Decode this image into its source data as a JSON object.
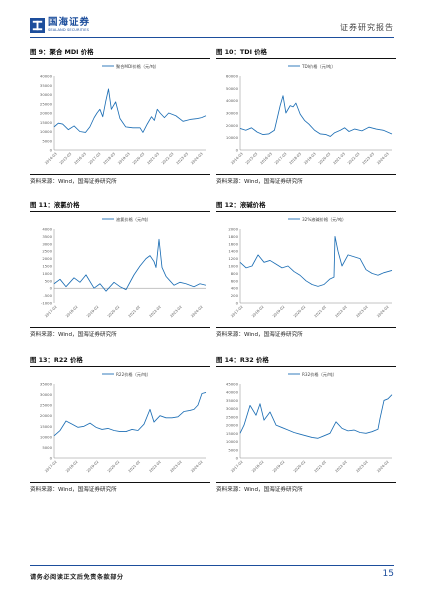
{
  "header": {
    "logo_cn": "国海证券",
    "logo_en": "SEALAND SECURITIES",
    "report_type": "证券研究报告"
  },
  "footer": {
    "disclaimer": "请务必阅读正文后免责条款部分",
    "page_number": "15"
  },
  "colors": {
    "brand": "#1d4e9c",
    "series": "#1e6fb5",
    "axis": "#888888"
  },
  "figures": [
    {
      "title": "图 9：聚合 MDI 价格",
      "source": "资料来源：Wind，国海证券研究所"
    },
    {
      "title": "图 10：TDI 价格",
      "source": "资料来源：Wind，国海证券研究所"
    },
    {
      "title": "图 11：液氯价格",
      "source": "资料来源：Wind，国海证券研究所"
    },
    {
      "title": "图 12：液碱价格",
      "source": "资料来源：Wind，国海证券研究所"
    },
    {
      "title": "图 13：R22 价格",
      "source": "资料来源：Wind，国海证券研究所"
    },
    {
      "title": "图 14：R32 价格",
      "source": "资料来源：Wind，国海证券研究所"
    }
  ],
  "chart_data": [
    {
      "type": "line",
      "legend": "聚合MDI价格（元/吨）",
      "legend_position": "top-center",
      "grid": false,
      "ylim": [
        0,
        40000
      ],
      "yticks": [
        0,
        5000,
        10000,
        15000,
        20000,
        25000,
        30000,
        35000,
        40000
      ],
      "xlim": [
        2014.0,
        2024.6
      ],
      "xticks": [
        "2014-03",
        "2015-03",
        "2016-03",
        "2017-03",
        "2018-03",
        "2019-03",
        "2020-03",
        "2021-03",
        "2022-03",
        "2023-03",
        "2024-03"
      ],
      "series": [
        {
          "x": [
            2014.0,
            2014.3,
            2014.6,
            2015.0,
            2015.4,
            2015.8,
            2016.2,
            2016.5,
            2016.8,
            2017.0,
            2017.2,
            2017.4,
            2017.6,
            2017.8,
            2018.0,
            2018.3,
            2018.6,
            2019.0,
            2019.5,
            2020.0,
            2020.2,
            2020.5,
            2020.8,
            2021.0,
            2021.2,
            2021.4,
            2021.7,
            2022.0,
            2022.5,
            2023.0,
            2023.5,
            2024.0,
            2024.3,
            2024.6
          ],
          "values": [
            12500,
            14500,
            14000,
            11000,
            13000,
            10000,
            9500,
            12500,
            17500,
            20000,
            22000,
            18000,
            26000,
            33000,
            22000,
            26000,
            17000,
            12500,
            12000,
            12000,
            9500,
            14000,
            18000,
            16000,
            22000,
            20000,
            17500,
            20000,
            18500,
            15500,
            16500,
            17000,
            17500,
            18500
          ]
        }
      ]
    },
    {
      "type": "line",
      "legend": "TDI价格（元/吨）",
      "legend_position": "top-center",
      "grid": false,
      "ylim": [
        0,
        60000
      ],
      "yticks": [
        0,
        10000,
        20000,
        30000,
        40000,
        50000,
        60000
      ],
      "xlim": [
        2014.0,
        2024.6
      ],
      "xticks": [
        "2014-03",
        "2015-03",
        "2016-03",
        "2017-03",
        "2018-03",
        "2019-03",
        "2020-03",
        "2021-03",
        "2022-03",
        "2023-03",
        "2024-03"
      ],
      "series": [
        {
          "x": [
            2014.0,
            2014.4,
            2014.8,
            2015.2,
            2015.6,
            2016.0,
            2016.4,
            2016.8,
            2017.0,
            2017.2,
            2017.5,
            2017.7,
            2017.9,
            2018.2,
            2018.5,
            2018.8,
            2019.2,
            2019.6,
            2020.0,
            2020.3,
            2020.6,
            2021.0,
            2021.3,
            2021.6,
            2022.0,
            2022.5,
            2023.0,
            2023.5,
            2024.0,
            2024.3,
            2024.6
          ],
          "values": [
            17500,
            16000,
            18000,
            14500,
            12500,
            13000,
            16000,
            36000,
            44000,
            30000,
            36000,
            35000,
            38000,
            29000,
            24000,
            21000,
            16000,
            13000,
            12500,
            11000,
            14000,
            16000,
            18000,
            15000,
            17000,
            15500,
            18500,
            17000,
            16000,
            14500,
            13000
          ]
        }
      ]
    },
    {
      "type": "line",
      "legend": "液氯价格（元/吨）",
      "legend_position": "top-center",
      "grid": false,
      "ylim": [
        -1000,
        4000
      ],
      "yticks": [
        -1000,
        -500,
        0,
        500,
        1000,
        1500,
        2000,
        2500,
        3000,
        3500,
        4000
      ],
      "xlim": [
        2017.0,
        2024.6
      ],
      "xticks": [
        "2017-02",
        "2018-02",
        "2019-02",
        "2020-02",
        "2021-02",
        "2022-02",
        "2023-02",
        "2024-02"
      ],
      "series": [
        {
          "x": [
            2017.0,
            2017.3,
            2017.6,
            2018.0,
            2018.3,
            2018.6,
            2019.0,
            2019.3,
            2019.6,
            2020.0,
            2020.3,
            2020.6,
            2021.0,
            2021.3,
            2021.6,
            2021.8,
            2022.0,
            2022.1,
            2022.25,
            2022.4,
            2022.6,
            2022.8,
            2023.0,
            2023.3,
            2023.6,
            2024.0,
            2024.3,
            2024.6
          ],
          "values": [
            300,
            600,
            100,
            700,
            400,
            900,
            0,
            300,
            -200,
            400,
            100,
            -100,
            900,
            1500,
            2000,
            2200,
            1800,
            1400,
            3300,
            1400,
            800,
            500,
            200,
            400,
            300,
            100,
            300,
            200
          ]
        }
      ]
    },
    {
      "type": "line",
      "legend": "32%液碱价格（元/吨）",
      "legend_position": "top-center",
      "grid": false,
      "ylim": [
        0,
        2000
      ],
      "yticks": [
        0,
        200,
        400,
        600,
        800,
        1000,
        1200,
        1400,
        1600,
        1800,
        2000
      ],
      "xlim": [
        2017.0,
        2024.6
      ],
      "xticks": [
        "2017-02",
        "2018-02",
        "2019-02",
        "2020-02",
        "2021-02",
        "2022-02",
        "2023-02",
        "2024-02"
      ],
      "series": [
        {
          "x": [
            2017.0,
            2017.3,
            2017.6,
            2017.9,
            2018.2,
            2018.5,
            2018.8,
            2019.1,
            2019.4,
            2019.7,
            2020.0,
            2020.3,
            2020.6,
            2020.9,
            2021.2,
            2021.5,
            2021.7,
            2021.75,
            2021.9,
            2022.1,
            2022.4,
            2022.7,
            2023.0,
            2023.3,
            2023.6,
            2023.9,
            2024.2,
            2024.6
          ],
          "values": [
            1100,
            950,
            1000,
            1300,
            1100,
            1150,
            1050,
            950,
            1000,
            850,
            750,
            600,
            500,
            450,
            500,
            650,
            700,
            1800,
            1400,
            1000,
            1300,
            1250,
            1200,
            900,
            800,
            750,
            820,
            880
          ]
        }
      ]
    },
    {
      "type": "line",
      "legend": "R22价格（元/吨）",
      "legend_position": "top-center",
      "grid": false,
      "ylim": [
        0,
        35000
      ],
      "yticks": [
        0,
        5000,
        10000,
        15000,
        20000,
        25000,
        30000,
        35000
      ],
      "xlim": [
        2017.0,
        2024.6
      ],
      "xticks": [
        "2017-02",
        "2018-02",
        "2019-02",
        "2020-02",
        "2021-02",
        "2022-02",
        "2023-02",
        "2024-02"
      ],
      "series": [
        {
          "x": [
            2017.0,
            2017.3,
            2017.6,
            2017.9,
            2018.2,
            2018.5,
            2018.8,
            2019.1,
            2019.4,
            2019.7,
            2020.0,
            2020.3,
            2020.6,
            2020.9,
            2021.2,
            2021.5,
            2021.8,
            2022.0,
            2022.3,
            2022.6,
            2022.9,
            2023.2,
            2023.5,
            2023.8,
            2024.0,
            2024.2,
            2024.4,
            2024.6
          ],
          "values": [
            10500,
            13000,
            17500,
            16000,
            14500,
            15000,
            16500,
            14500,
            13500,
            14000,
            13000,
            12500,
            12500,
            13500,
            13000,
            16000,
            23000,
            17000,
            20000,
            19000,
            19000,
            19500,
            22000,
            22500,
            23000,
            25000,
            30500,
            31000
          ]
        }
      ]
    },
    {
      "type": "line",
      "legend": "R32价格（元/吨）",
      "legend_position": "top-center",
      "grid": false,
      "ylim": [
        0,
        45000
      ],
      "yticks": [
        0,
        5000,
        10000,
        15000,
        20000,
        25000,
        30000,
        35000,
        40000,
        45000
      ],
      "xlim": [
        2017.0,
        2024.6
      ],
      "xticks": [
        "2017-02",
        "2018-02",
        "2019-02",
        "2020-02",
        "2021-02",
        "2022-02",
        "2023-02",
        "2024-02"
      ],
      "series": [
        {
          "x": [
            2017.0,
            2017.2,
            2017.5,
            2017.8,
            2018.0,
            2018.2,
            2018.5,
            2018.8,
            2019.1,
            2019.4,
            2019.7,
            2020.0,
            2020.3,
            2020.6,
            2020.9,
            2021.2,
            2021.5,
            2021.8,
            2022.1,
            2022.4,
            2022.7,
            2023.0,
            2023.3,
            2023.6,
            2023.9,
            2024.0,
            2024.2,
            2024.4,
            2024.6
          ],
          "values": [
            15000,
            20000,
            32000,
            26000,
            33000,
            23000,
            28000,
            20000,
            18500,
            17000,
            15500,
            14500,
            13500,
            12500,
            12000,
            13500,
            15000,
            22000,
            18000,
            16500,
            17000,
            15500,
            15000,
            16000,
            17500,
            24000,
            35000,
            36000,
            38500
          ]
        }
      ]
    }
  ]
}
